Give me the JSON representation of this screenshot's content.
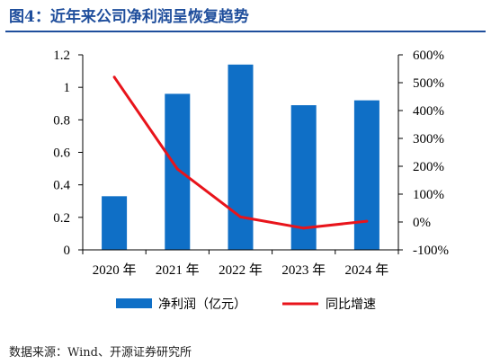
{
  "figure": {
    "title": "图4：近年来公司净利润呈恢复趋势",
    "source": "数据来源：Wind、开源证券研究所"
  },
  "chart_data": {
    "type": "bar",
    "categories": [
      "2020 年",
      "2021 年",
      "2022 年",
      "2023 年",
      "2024 年"
    ],
    "series": [
      {
        "name": "净利润（亿元）",
        "type": "bar",
        "axis": "left",
        "color": "#0f6fc6",
        "values": [
          0.33,
          0.96,
          1.14,
          0.89,
          0.92
        ]
      },
      {
        "name": "同比增速",
        "type": "line",
        "axis": "right",
        "color": "#e8141b",
        "values": [
          5.2,
          1.9,
          0.18,
          -0.22,
          0.03
        ]
      }
    ],
    "left_axis": {
      "ylim": [
        0,
        1.2
      ],
      "ticks": [
        0,
        0.2,
        0.4,
        0.6,
        0.8,
        1,
        1.2
      ],
      "tick_labels": [
        "0",
        "0.2",
        "0.4",
        "0.6",
        "0.8",
        "1",
        "1.2"
      ]
    },
    "right_axis": {
      "ylim": [
        -1,
        6
      ],
      "ticks": [
        -1,
        0,
        1,
        2,
        3,
        4,
        5,
        6
      ],
      "tick_labels": [
        "-100%",
        "0%",
        "100%",
        "200%",
        "300%",
        "400%",
        "500%",
        "600%"
      ]
    },
    "grid": false,
    "legend_position": "bottom"
  }
}
